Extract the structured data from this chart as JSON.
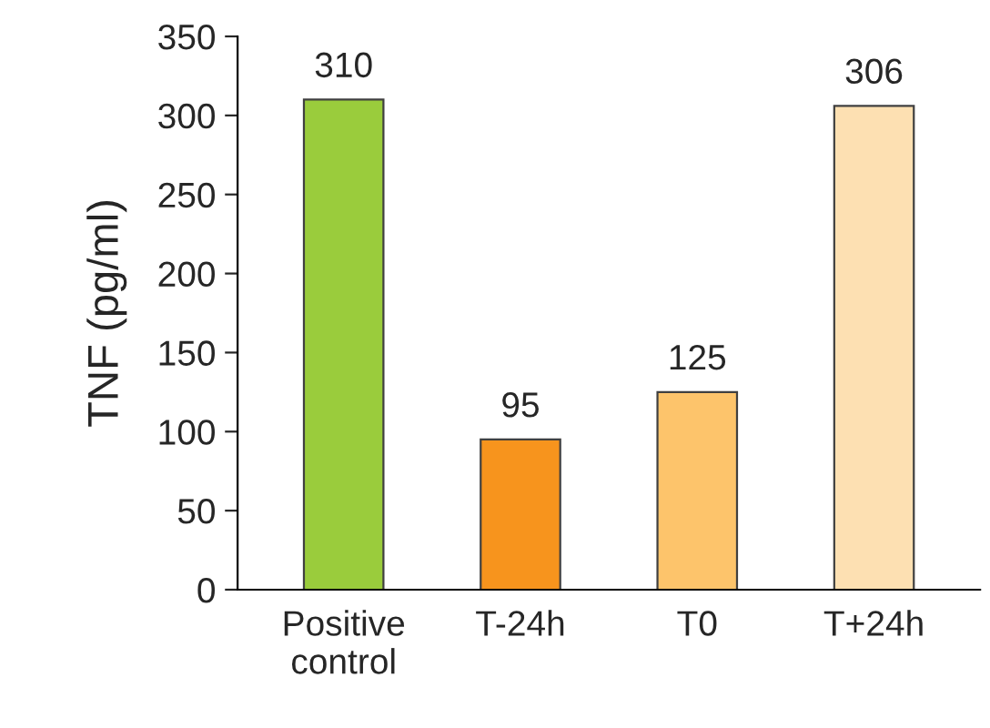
{
  "chart_data": {
    "type": "bar",
    "ylabel": "TNF (pg/ml)",
    "categories": [
      "Positive\ncontrol",
      "T-24h",
      "T0",
      "T+24h"
    ],
    "values": [
      310,
      95,
      125,
      306
    ],
    "colors": [
      "#9acc3c",
      "#f7941d",
      "#fdc46b",
      "#fde0b2"
    ],
    "ylim": [
      0,
      350
    ],
    "yticks": [
      0,
      50,
      100,
      150,
      200,
      250,
      300,
      350
    ],
    "data_labels": true,
    "grid": false,
    "legend": false
  }
}
